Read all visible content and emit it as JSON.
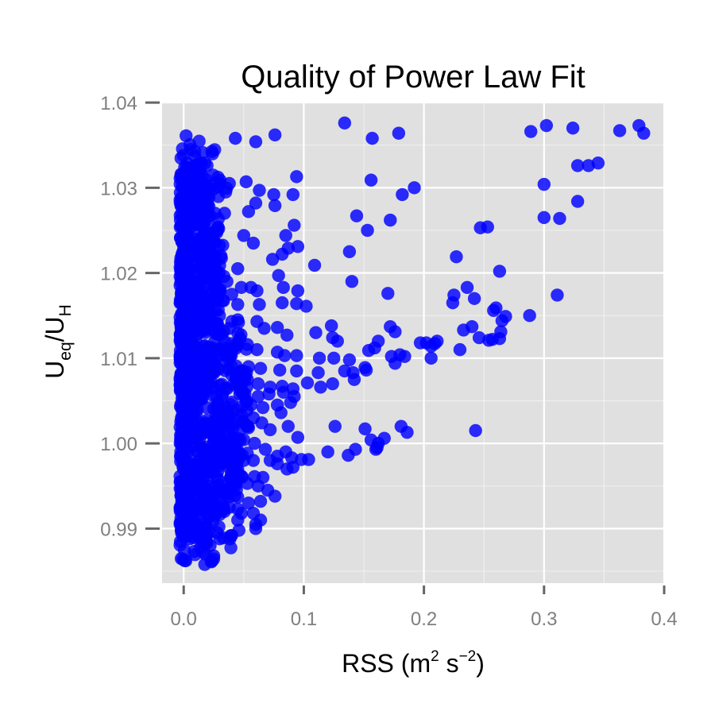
{
  "chart_data": {
    "type": "scatter",
    "title": "Quality of Power Law Fit",
    "xlabel": {
      "main": "RSS (m",
      "sup1": "2",
      "mid": " s",
      "sup2": "−2",
      "end": ")"
    },
    "ylabel": {
      "u1": "U",
      "sub1": "eq",
      "slash": "/U",
      "sub2": "H"
    },
    "xlim": [
      -0.018,
      0.4
    ],
    "ylim": [
      0.9836,
      1.0401
    ],
    "x_ticks": [
      {
        "value": 0.0,
        "label": "0.0"
      },
      {
        "value": 0.1,
        "label": "0.1"
      },
      {
        "value": 0.2,
        "label": "0.2"
      },
      {
        "value": 0.3,
        "label": "0.3"
      },
      {
        "value": 0.4,
        "label": "0.4"
      }
    ],
    "y_ticks": [
      {
        "value": 0.99,
        "label": "0.99"
      },
      {
        "value": 1.0,
        "label": "1.00"
      },
      {
        "value": 1.01,
        "label": "1.01"
      },
      {
        "value": 1.02,
        "label": "1.02"
      },
      {
        "value": 1.03,
        "label": "1.03"
      },
      {
        "value": 1.04,
        "label": "1.04"
      }
    ],
    "grid": true,
    "point_color": "#0000ff",
    "panel_color": "#e0e0e0",
    "grid_color": "#ffffff",
    "points": [
      [
        0.002,
        1.0361
      ],
      [
        0.043,
        1.0358
      ],
      [
        0.06,
        1.0354
      ],
      [
        0.076,
        1.0362
      ],
      [
        0.134,
        1.0376
      ],
      [
        0.157,
        1.0358
      ],
      [
        0.179,
        1.0364
      ],
      [
        0.289,
        1.0366
      ],
      [
        0.302,
        1.0373
      ],
      [
        0.324,
        1.037
      ],
      [
        0.363,
        1.0367
      ],
      [
        0.379,
        1.0373
      ],
      [
        0.383,
        1.0364
      ],
      [
        0.328,
        1.0326
      ],
      [
        0.337,
        1.0326
      ],
      [
        0.345,
        1.0329
      ],
      [
        0.3,
        1.0304
      ],
      [
        0.328,
        1.0284
      ],
      [
        0.3,
        1.0265
      ],
      [
        0.313,
        1.0264
      ],
      [
        0.001,
        1.0315
      ],
      [
        0.003,
        1.031
      ],
      [
        0.01,
        1.03
      ],
      [
        0.015,
        1.0305
      ],
      [
        0.02,
        1.0298
      ],
      [
        0.026,
        1.0305
      ],
      [
        0.035,
        1.0295
      ],
      [
        0.052,
        1.0307
      ],
      [
        0.063,
        1.0297
      ],
      [
        0.075,
        1.0292
      ],
      [
        0.094,
        1.0313
      ],
      [
        0.091,
        1.0292
      ],
      [
        0.156,
        1.0309
      ],
      [
        0.182,
        1.0292
      ],
      [
        0.192,
        1.03
      ],
      [
        0.06,
        1.0282
      ],
      [
        0.054,
        1.0272
      ],
      [
        0.076,
        1.0279
      ],
      [
        0.092,
        1.0256
      ],
      [
        0.085,
        1.0244
      ],
      [
        0.087,
        1.0229
      ],
      [
        0.095,
        1.0231
      ],
      [
        0.144,
        1.0267
      ],
      [
        0.153,
        1.025
      ],
      [
        0.172,
        1.0262
      ],
      [
        0.247,
        1.0253
      ],
      [
        0.253,
        1.0254
      ],
      [
        0.05,
        1.0244
      ],
      [
        0.058,
        1.0235
      ],
      [
        0.074,
        1.0216
      ],
      [
        0.082,
        1.0222
      ],
      [
        0.079,
        1.0197
      ],
      [
        0.109,
        1.0209
      ],
      [
        0.138,
        1.0225
      ],
      [
        0.045,
        1.0205
      ],
      [
        0.048,
        1.0183
      ],
      [
        0.056,
        1.0183
      ],
      [
        0.061,
        1.0179
      ],
      [
        0.083,
        1.0183
      ],
      [
        0.095,
        1.0179
      ],
      [
        0.14,
        1.019
      ],
      [
        0.227,
        1.0219
      ],
      [
        0.263,
        1.0202
      ],
      [
        0.236,
        1.0183
      ],
      [
        0.225,
        1.0174
      ],
      [
        0.242,
        1.017
      ],
      [
        0.224,
        1.0165
      ],
      [
        0.045,
        1.0163
      ],
      [
        0.063,
        1.0163
      ],
      [
        0.082,
        1.0165
      ],
      [
        0.094,
        1.0164
      ],
      [
        0.102,
        1.0161
      ],
      [
        0.17,
        1.0176
      ],
      [
        0.26,
        1.0159
      ],
      [
        0.258,
        1.0156
      ],
      [
        0.288,
        1.015
      ],
      [
        0.311,
        1.0174
      ],
      [
        0.045,
        1.0145
      ],
      [
        0.061,
        1.0143
      ],
      [
        0.067,
        1.0135
      ],
      [
        0.078,
        1.0136
      ],
      [
        0.086,
        1.0127
      ],
      [
        0.11,
        1.013
      ],
      [
        0.123,
        1.0138
      ],
      [
        0.124,
        1.0124
      ],
      [
        0.128,
        1.012
      ],
      [
        0.162,
        1.012
      ],
      [
        0.172,
        1.0137
      ],
      [
        0.176,
        1.0131
      ],
      [
        0.233,
        1.0133
      ],
      [
        0.24,
        1.0137
      ],
      [
        0.265,
        1.0144
      ],
      [
        0.268,
        1.0149
      ],
      [
        0.264,
        1.0131
      ],
      [
        0.263,
        1.0123
      ],
      [
        0.254,
        1.0121
      ],
      [
        0.257,
        1.0122
      ],
      [
        0.047,
        1.0123
      ],
      [
        0.053,
        1.0116
      ],
      [
        0.061,
        1.011
      ],
      [
        0.078,
        1.0107
      ],
      [
        0.084,
        1.0103
      ],
      [
        0.094,
        1.0103
      ],
      [
        0.113,
        1.01
      ],
      [
        0.125,
        1.01
      ],
      [
        0.138,
        1.0098
      ],
      [
        0.154,
        1.0109
      ],
      [
        0.159,
        1.0112
      ],
      [
        0.173,
        1.0102
      ],
      [
        0.176,
        1.0094
      ],
      [
        0.18,
        1.0104
      ],
      [
        0.184,
        1.0102
      ],
      [
        0.197,
        1.0118
      ],
      [
        0.202,
        1.0118
      ],
      [
        0.206,
        1.0114
      ],
      [
        0.209,
        1.0117
      ],
      [
        0.206,
        1.01
      ],
      [
        0.211,
        1.012
      ],
      [
        0.23,
        1.011
      ],
      [
        0.246,
        1.0124
      ],
      [
        0.054,
        1.009
      ],
      [
        0.064,
        1.0088
      ],
      [
        0.08,
        1.0086
      ],
      [
        0.094,
        1.0085
      ],
      [
        0.112,
        1.0083
      ],
      [
        0.134,
        1.0085
      ],
      [
        0.141,
        1.0083
      ],
      [
        0.151,
        1.0089
      ],
      [
        0.152,
        1.0086
      ],
      [
        0.053,
        1.0075
      ],
      [
        0.062,
        1.007
      ],
      [
        0.072,
        1.0066
      ],
      [
        0.082,
        1.0067
      ],
      [
        0.091,
        1.0064
      ],
      [
        0.103,
        1.0071
      ],
      [
        0.114,
        1.0066
      ],
      [
        0.124,
        1.007
      ],
      [
        0.142,
        1.0075
      ],
      [
        0.051,
        1.0058
      ],
      [
        0.062,
        1.0055
      ],
      [
        0.071,
        1.0058
      ],
      [
        0.083,
        1.006
      ],
      [
        0.092,
        1.0055
      ],
      [
        0.056,
        1.0045
      ],
      [
        0.066,
        1.0042
      ],
      [
        0.078,
        1.0045
      ],
      [
        0.089,
        1.0048
      ],
      [
        0.081,
        1.0036
      ],
      [
        0.087,
        1.002
      ],
      [
        0.058,
        1.003
      ],
      [
        0.065,
        1.0024
      ],
      [
        0.072,
        1.0016
      ],
      [
        0.095,
        1.0007
      ],
      [
        0.126,
        1.002
      ],
      [
        0.151,
        1.0017
      ],
      [
        0.156,
        1.0004
      ],
      [
        0.162,
        1.0
      ],
      [
        0.167,
        1.0006
      ],
      [
        0.181,
        1.002
      ],
      [
        0.186,
        1.0013
      ],
      [
        0.243,
        1.0015
      ],
      [
        0.059,
        1.0
      ],
      [
        0.068,
        0.9993
      ],
      [
        0.078,
        0.9985
      ],
      [
        0.085,
        0.999
      ],
      [
        0.09,
        0.9983
      ],
      [
        0.098,
        0.9981
      ],
      [
        0.104,
        0.9981
      ],
      [
        0.12,
        0.999
      ],
      [
        0.137,
        0.9986
      ],
      [
        0.143,
        0.9993
      ],
      [
        0.16,
        0.9993
      ],
      [
        0.161,
        0.9995
      ],
      [
        0.058,
        0.998
      ],
      [
        0.072,
        0.998
      ],
      [
        0.078,
        0.9976
      ],
      [
        0.086,
        0.997
      ],
      [
        0.091,
        0.9972
      ],
      [
        0.059,
        0.9961
      ],
      [
        0.066,
        0.996
      ],
      [
        0.053,
        0.9953
      ],
      [
        0.062,
        0.995
      ],
      [
        0.07,
        0.9945
      ],
      [
        0.045,
        0.9937
      ],
      [
        0.054,
        0.993
      ],
      [
        0.064,
        0.9932
      ],
      [
        0.076,
        0.9938
      ],
      [
        0.038,
        0.9925
      ],
      [
        0.048,
        0.9918
      ],
      [
        0.058,
        0.9918
      ],
      [
        0.045,
        0.991
      ],
      [
        0.06,
        0.9905
      ],
      [
        0.064,
        0.991
      ],
      [
        0.06,
        0.99
      ],
      [
        0.04,
        0.9892
      ],
      [
        0.046,
        0.9898
      ],
      [
        0.03,
        0.9888
      ],
      [
        0.018,
        0.9898
      ],
      [
        0.028,
        0.9895
      ],
      [
        0.005,
        0.9888
      ],
      [
        0.014,
        0.9878
      ],
      [
        0.018,
        0.987
      ],
      [
        0.022,
        0.988
      ],
      [
        0.025,
        0.9868
      ],
      [
        0.023,
        0.9861
      ],
      [
        0.003,
        0.991
      ],
      [
        0.009,
        0.9905
      ],
      [
        0.039,
        0.996
      ],
      [
        0.045,
        0.997
      ],
      [
        0.038,
        0.998
      ],
      [
        0.05,
        0.998
      ],
      [
        0.044,
        1.007
      ],
      [
        0.049,
        1.0085
      ],
      [
        0.04,
        1.011
      ],
      [
        0.038,
        1.0135
      ],
      [
        0.036,
        1.019
      ],
      [
        0.04,
        1.0175
      ],
      [
        0.031,
        1.022
      ],
      [
        0.026,
        1.021
      ],
      [
        0.034,
        1.027
      ],
      [
        0.028,
        1.025
      ],
      [
        0.021,
        1.0278
      ],
      [
        0.038,
        1.0305
      ]
    ],
    "cluster_bands": [
      [
        1.0315,
        0.004,
        0.03
      ],
      [
        1.03,
        0.004,
        0.036
      ],
      [
        1.0285,
        0.004,
        0.03
      ],
      [
        1.027,
        0.004,
        0.034
      ],
      [
        1.0255,
        0.004,
        0.028
      ],
      [
        1.024,
        0.004,
        0.03
      ],
      [
        1.0225,
        0.004,
        0.03
      ],
      [
        1.021,
        0.004,
        0.032
      ],
      [
        1.0195,
        0.004,
        0.036
      ],
      [
        1.018,
        0.004,
        0.032
      ],
      [
        1.0165,
        0.004,
        0.03
      ],
      [
        1.015,
        0.004,
        0.035
      ],
      [
        1.0135,
        0.004,
        0.042
      ],
      [
        1.012,
        0.004,
        0.045
      ],
      [
        1.0105,
        0.004,
        0.048
      ],
      [
        1.009,
        0.004,
        0.052
      ],
      [
        1.0075,
        0.004,
        0.055
      ],
      [
        1.006,
        0.004,
        0.056
      ],
      [
        1.0045,
        0.004,
        0.056
      ],
      [
        1.003,
        0.004,
        0.055
      ],
      [
        1.0015,
        0.004,
        0.053
      ],
      [
        1.0,
        0.004,
        0.05
      ],
      [
        0.9985,
        0.004,
        0.048
      ],
      [
        0.997,
        0.004,
        0.05
      ],
      [
        0.9955,
        0.004,
        0.048
      ],
      [
        0.994,
        0.004,
        0.05
      ],
      [
        0.9925,
        0.004,
        0.046
      ],
      [
        0.991,
        0.004,
        0.04
      ],
      [
        0.9895,
        0.004,
        0.03
      ]
    ]
  }
}
